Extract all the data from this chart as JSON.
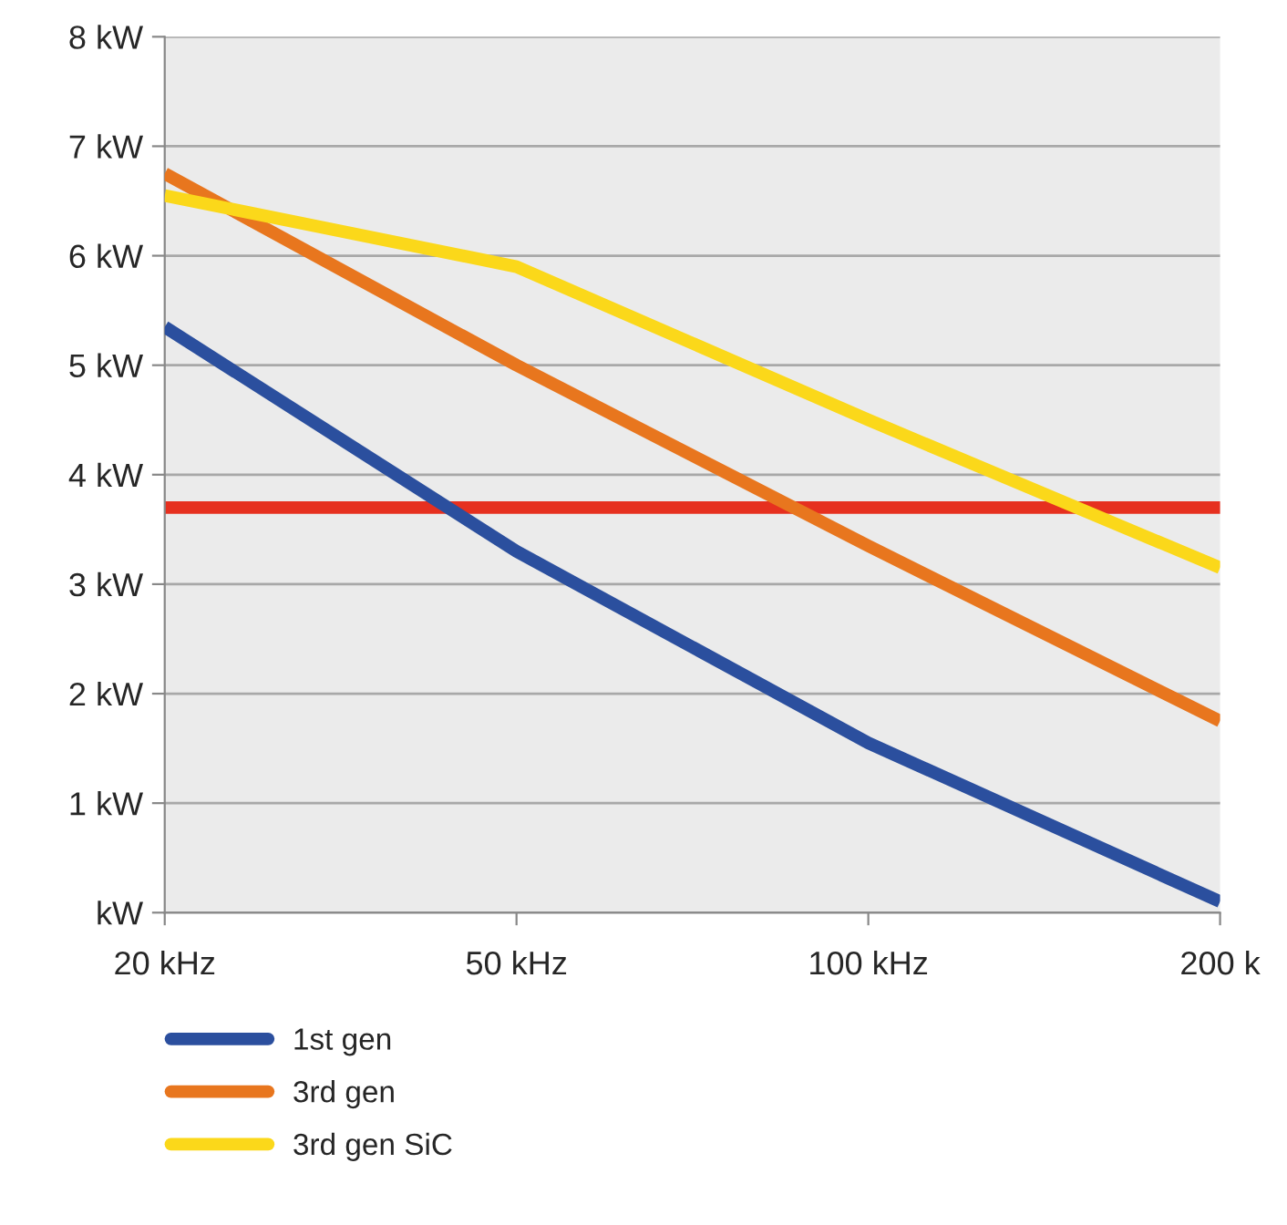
{
  "chart_data": {
    "type": "line",
    "categories": [
      "20 kHz",
      "50 kHz",
      "100 kHz",
      "200 k"
    ],
    "ylim": [
      0,
      8
    ],
    "yticks": [
      {
        "value": 0,
        "label": "kW"
      },
      {
        "value": 1,
        "label": "1 kW"
      },
      {
        "value": 2,
        "label": "2 kW"
      },
      {
        "value": 3,
        "label": "3 kW"
      },
      {
        "value": 4,
        "label": "4 kW"
      },
      {
        "value": 5,
        "label": "5 kW"
      },
      {
        "value": 6,
        "label": "6 kW"
      },
      {
        "value": 7,
        "label": "7 kW"
      },
      {
        "value": 8,
        "label": "8 kW"
      }
    ],
    "grid": "y",
    "legend": "bottom",
    "marker": "none",
    "line_style": "solid",
    "series": [
      {
        "name": "1st gen",
        "color": "#2b4f9e",
        "values": [
          5.35,
          3.3,
          1.55,
          0.1
        ]
      },
      {
        "name": "3rd gen",
        "color": "#e8761e",
        "values": [
          6.75,
          5.0,
          3.35,
          1.75
        ]
      },
      {
        "name": "3rd gen SiC",
        "color": "#fbd81a",
        "values": [
          6.55,
          5.9,
          4.5,
          3.15
        ]
      }
    ],
    "ref_lines": [
      {
        "axis": "y",
        "value": 3.7,
        "color": "#e6301f",
        "line_style": "solid"
      }
    ]
  }
}
